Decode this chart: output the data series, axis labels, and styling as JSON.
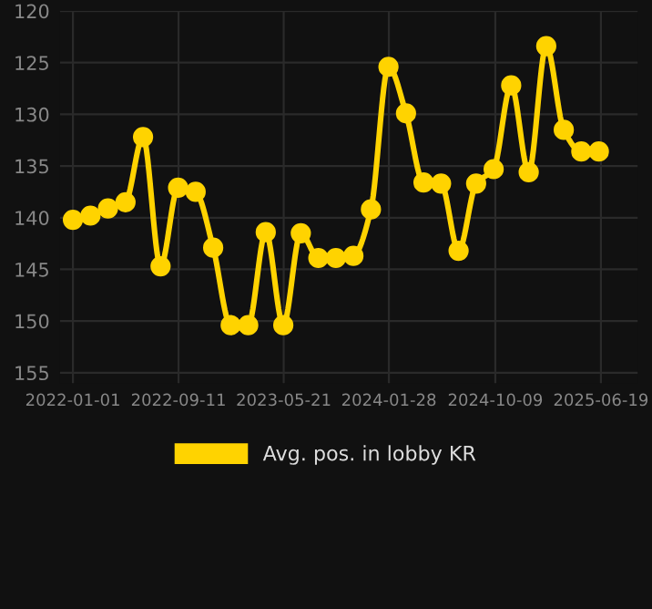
{
  "chart_data": {
    "type": "line",
    "x": [
      "2022-01-01",
      "2022-02-12",
      "2022-03-26",
      "2022-05-07",
      "2022-06-18",
      "2022-07-30",
      "2022-09-10",
      "2022-10-22",
      "2022-12-03",
      "2023-01-14",
      "2023-02-25",
      "2023-04-08",
      "2023-05-20",
      "2023-07-01",
      "2023-08-12",
      "2023-09-23",
      "2023-11-04",
      "2023-12-16",
      "2024-01-27",
      "2024-03-09",
      "2024-04-20",
      "2024-06-01",
      "2024-07-13",
      "2024-08-24",
      "2024-10-05",
      "2024-11-16",
      "2024-12-28",
      "2025-02-08",
      "2025-03-22",
      "2025-05-03",
      "2025-06-14"
    ],
    "series": [
      {
        "name": "Avg. pos. in lobby KR",
        "color": "#ffd300",
        "values": [
          140.2,
          139.8,
          139.1,
          138.5,
          132.2,
          144.7,
          137.1,
          137.5,
          142.9,
          150.4,
          150.4,
          141.4,
          150.4,
          141.5,
          143.9,
          143.9,
          143.7,
          139.2,
          125.4,
          129.9,
          136.6,
          136.7,
          143.2,
          136.7,
          135.3,
          127.2,
          135.6,
          123.4,
          131.5,
          133.6,
          133.6
        ]
      }
    ],
    "ylim": [
      156,
      120
    ],
    "yticks": [
      120,
      125,
      130,
      135,
      140,
      145,
      150,
      155
    ],
    "xlim": [
      "2021-12-01",
      "2025-09-15"
    ],
    "xticks": [
      "2022-01-01",
      "2022-09-11",
      "2023-05-21",
      "2024-01-28",
      "2024-10-09",
      "2025-06-19"
    ],
    "grid": true,
    "legend": "bottom",
    "marker": "circle",
    "line_style": "solid"
  }
}
